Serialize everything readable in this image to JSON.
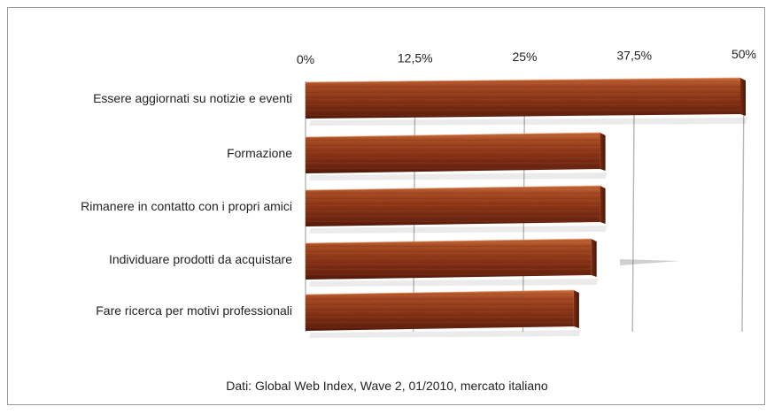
{
  "chart_data": {
    "type": "bar",
    "orientation": "horizontal",
    "categories": [
      "Essere aggiornati su notizie e eventi",
      "Formazione",
      "Rimanere in contatto con i propri amici",
      "Individuare prodotti da acquistare",
      "Fare ricerca per motivi professionali"
    ],
    "values": [
      50,
      34,
      34,
      33,
      31
    ],
    "ticks": [
      "0%",
      "12,5%",
      "25%",
      "37,5%",
      "50%"
    ],
    "tick_values": [
      0,
      12.5,
      25,
      37.5,
      50
    ],
    "xlim": [
      0,
      50
    ],
    "grid": true,
    "bar_color": "#8b3a1a"
  },
  "footer": {
    "source": "Dati: Global Web Index, Wave 2, 01/2010, mercato italiano"
  }
}
